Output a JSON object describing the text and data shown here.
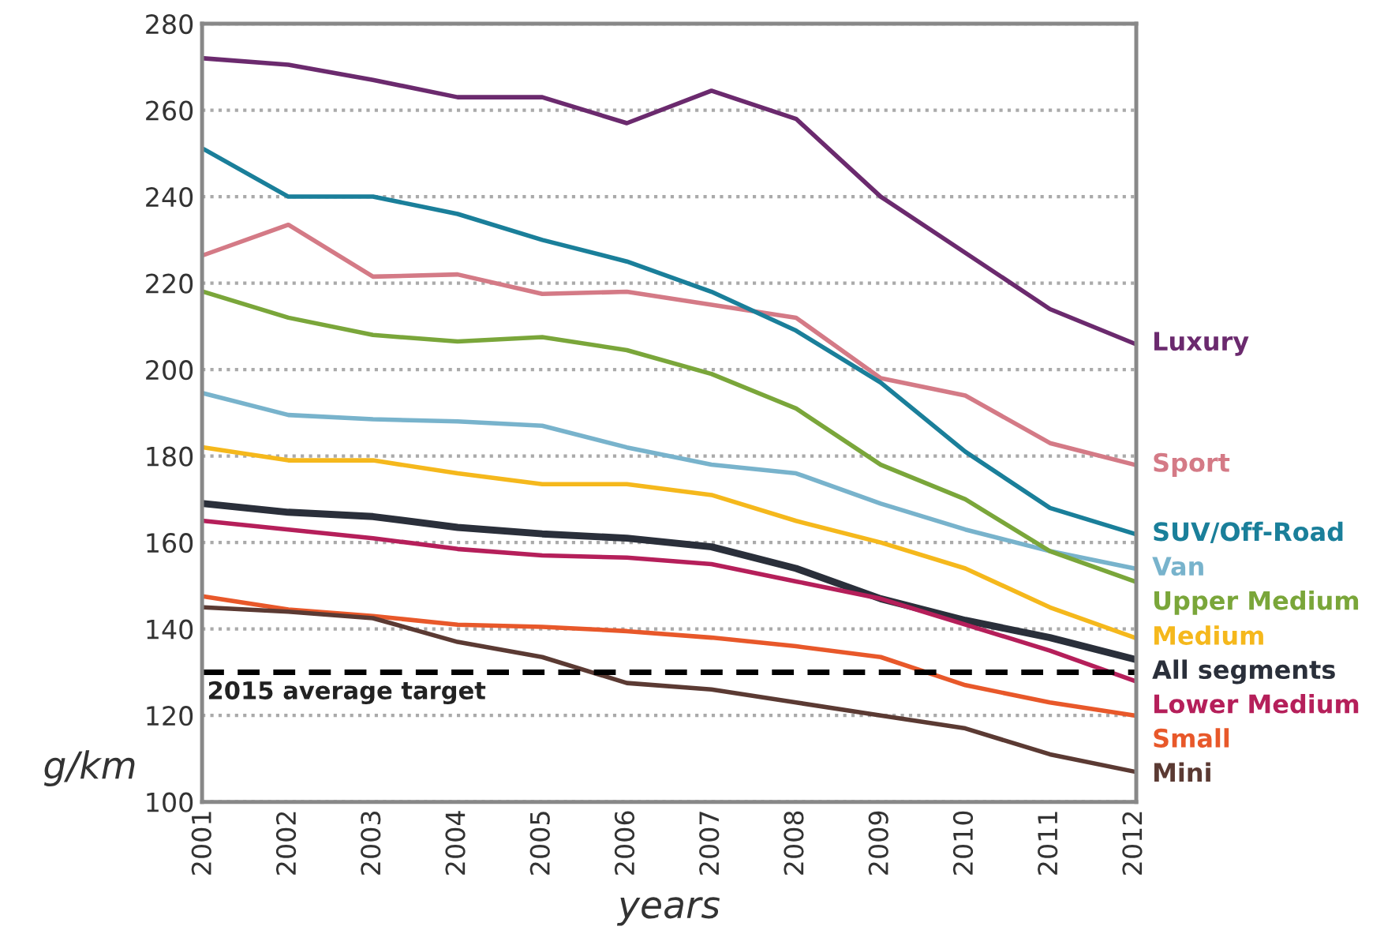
{
  "chart_data": {
    "type": "line",
    "xlabel": "years",
    "ylabel": "g/km",
    "categories": [
      "2001",
      "2002",
      "2003",
      "2004",
      "2005",
      "2006",
      "2007",
      "2008",
      "2009",
      "2010",
      "2011",
      "2012"
    ],
    "series": [
      {
        "name": "Luxury",
        "color": "#6b2a6e",
        "values": [
          272,
          270.5,
          267,
          263,
          263,
          257,
          264.5,
          258,
          240,
          227,
          214,
          206
        ]
      },
      {
        "name": "Sport",
        "color": "#d47a86",
        "values": [
          226.5,
          233.5,
          221.5,
          222,
          217.5,
          218,
          215,
          212,
          198,
          194,
          183,
          178
        ]
      },
      {
        "name": "SUV/Off-Road",
        "color": "#1a7f9a",
        "values": [
          251,
          240,
          240,
          236,
          230,
          225,
          218,
          209,
          197,
          181,
          168,
          162
        ]
      },
      {
        "name": "Van",
        "color": "#78b3cc",
        "values": [
          194.5,
          189.5,
          188.5,
          188,
          187,
          182,
          178,
          176,
          169,
          163,
          158,
          154
        ]
      },
      {
        "name": "Upper Medium",
        "color": "#7aa63a",
        "values": [
          218,
          212,
          208,
          206.5,
          207.5,
          204.5,
          199,
          191,
          178,
          170,
          158,
          151
        ]
      },
      {
        "name": "Medium",
        "color": "#f5b81c",
        "values": [
          182,
          179,
          179,
          176,
          173.5,
          173.5,
          171,
          165,
          160,
          154,
          145,
          138
        ]
      },
      {
        "name": "All segments",
        "color": "#2a2f3a",
        "values": [
          169,
          167,
          166,
          163.5,
          162,
          161,
          159,
          154,
          147,
          142,
          138,
          133
        ]
      },
      {
        "name": "Lower Medium",
        "color": "#b51f5a",
        "values": [
          165,
          163,
          161,
          158.5,
          157,
          156.5,
          155,
          151,
          147,
          141,
          135,
          128
        ]
      },
      {
        "name": "Small",
        "color": "#e8582a",
        "values": [
          147.5,
          144.5,
          143,
          141,
          140.5,
          139.5,
          138,
          136,
          133.5,
          127,
          123,
          120
        ]
      },
      {
        "name": "Mini",
        "color": "#5b3a33",
        "values": [
          145,
          144,
          142.5,
          137,
          133.5,
          127.5,
          126,
          123,
          120,
          117,
          111,
          107
        ]
      }
    ],
    "ylim": [
      100,
      280
    ],
    "yticks": [
      100,
      120,
      140,
      160,
      180,
      200,
      220,
      240,
      260,
      280
    ],
    "grid": "y",
    "legend": false,
    "line_style": "solid",
    "marker": "none",
    "ref_lines": [
      {
        "axis": "y",
        "value": 130,
        "label": "2015 average target",
        "color": "#000000",
        "line_style": "dashed"
      }
    ]
  }
}
